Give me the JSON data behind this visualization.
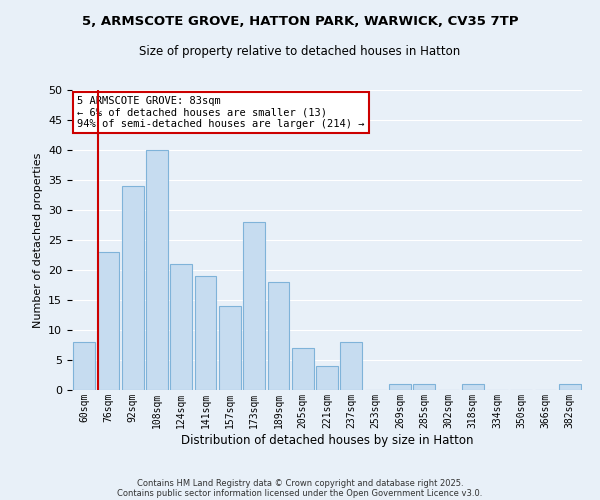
{
  "title": "5, ARMSCOTE GROVE, HATTON PARK, WARWICK, CV35 7TP",
  "subtitle": "Size of property relative to detached houses in Hatton",
  "xlabel": "Distribution of detached houses by size in Hatton",
  "ylabel": "Number of detached properties",
  "bar_color": "#c6dcf0",
  "bar_edge_color": "#7fb3d9",
  "background_color": "#e8f0f8",
  "grid_color": "#ffffff",
  "categories": [
    "60sqm",
    "76sqm",
    "92sqm",
    "108sqm",
    "124sqm",
    "141sqm",
    "157sqm",
    "173sqm",
    "189sqm",
    "205sqm",
    "221sqm",
    "237sqm",
    "253sqm",
    "269sqm",
    "285sqm",
    "302sqm",
    "318sqm",
    "334sqm",
    "350sqm",
    "366sqm",
    "382sqm"
  ],
  "values": [
    8,
    23,
    34,
    40,
    21,
    19,
    14,
    28,
    18,
    7,
    4,
    8,
    0,
    1,
    1,
    0,
    1,
    0,
    0,
    0,
    1
  ],
  "ylim": [
    0,
    50
  ],
  "yticks": [
    0,
    5,
    10,
    15,
    20,
    25,
    30,
    35,
    40,
    45,
    50
  ],
  "vline_color": "#cc0000",
  "annotation_title": "5 ARMSCOTE GROVE: 83sqm",
  "annotation_line1": "← 6% of detached houses are smaller (13)",
  "annotation_line2": "94% of semi-detached houses are larger (214) →",
  "annotation_box_color": "#ffffff",
  "annotation_box_edge": "#cc0000",
  "footer1": "Contains HM Land Registry data © Crown copyright and database right 2025.",
  "footer2": "Contains public sector information licensed under the Open Government Licence v3.0."
}
